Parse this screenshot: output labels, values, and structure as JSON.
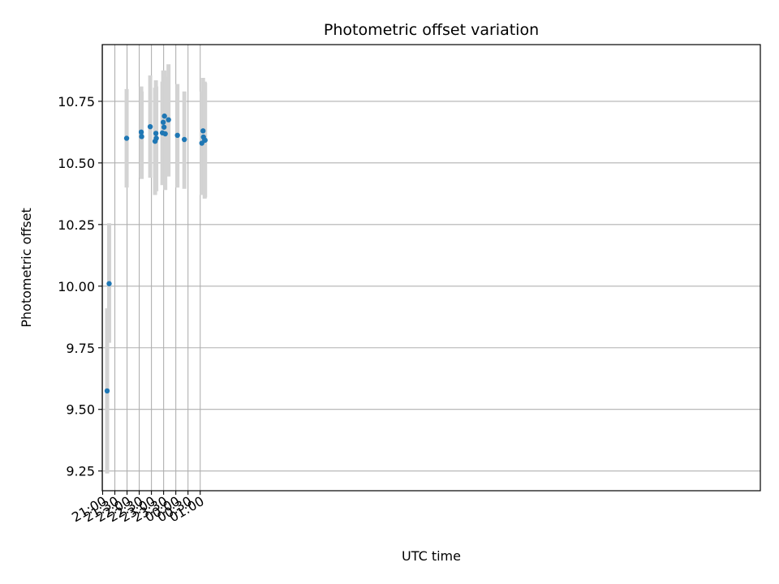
{
  "chart_data": {
    "type": "scatter",
    "title": "Photometric offset variation",
    "xlabel": "UTC time",
    "ylabel": "Photometric offset",
    "x_range": [
      "20:59",
      "23:58 +1 day"
    ],
    "ylim": [
      9.17,
      10.98
    ],
    "grid": true,
    "x_ticks": [
      "21:00",
      "21:30",
      "22:00",
      "22:30",
      "23:00",
      "23:30",
      "00:00",
      "00:30",
      "01:00"
    ],
    "y_ticks": [
      9.25,
      9.5,
      9.75,
      10.0,
      10.25,
      10.5,
      10.75
    ],
    "y_tick_labels": [
      "9.25",
      "9.50",
      "9.75",
      "10.00",
      "10.25",
      "10.50",
      "10.75"
    ],
    "colors": {
      "point": "#1f77b4",
      "error_bar": "#d3d3d3",
      "grid": "#b0b0b0",
      "axes": "#000000"
    },
    "points": [
      {
        "time": "21:11",
        "y": 9.575,
        "y_lo": 9.24,
        "y_hi": 9.91
      },
      {
        "time": "21:16",
        "y": 10.01,
        "y_lo": 9.77,
        "y_hi": 10.255
      },
      {
        "time": "21:59",
        "y": 10.6,
        "y_lo": 10.4,
        "y_hi": 10.8
      },
      {
        "time": "22:35",
        "y": 10.625,
        "y_lo": 10.44,
        "y_hi": 10.81
      },
      {
        "time": "22:36",
        "y": 10.607,
        "y_lo": 10.435,
        "y_hi": 10.79
      },
      {
        "time": "22:57",
        "y": 10.647,
        "y_lo": 10.44,
        "y_hi": 10.855
      },
      {
        "time": "23:09",
        "y": 10.588,
        "y_lo": 10.37,
        "y_hi": 10.805
      },
      {
        "time": "23:11",
        "y": 10.62,
        "y_lo": 10.405,
        "y_hi": 10.835
      },
      {
        "time": "23:12",
        "y": 10.6,
        "y_lo": 10.385,
        "y_hi": 10.81
      },
      {
        "time": "23:27",
        "y": 10.622,
        "y_lo": 10.41,
        "y_hi": 10.83
      },
      {
        "time": "23:29",
        "y": 10.665,
        "y_lo": 10.455,
        "y_hi": 10.875
      },
      {
        "time": "23:31",
        "y": 10.645,
        "y_lo": 10.435,
        "y_hi": 10.855
      },
      {
        "time": "23:32",
        "y": 10.69,
        "y_lo": 10.5,
        "y_hi": 10.875
      },
      {
        "time": "23:34",
        "y": 10.618,
        "y_lo": 10.39,
        "y_hi": 10.85
      },
      {
        "time": "23:42",
        "y": 10.675,
        "y_lo": 10.445,
        "y_hi": 10.9
      },
      {
        "time": "00:04",
        "y": 10.612,
        "y_lo": 10.4,
        "y_hi": 10.82
      },
      {
        "time": "00:21",
        "y": 10.595,
        "y_lo": 10.395,
        "y_hi": 10.79
      },
      {
        "time": "01:04",
        "y": 10.58,
        "y_lo": 10.37,
        "y_hi": 10.79
      },
      {
        "time": "01:07",
        "y": 10.63,
        "y_lo": 10.41,
        "y_hi": 10.845
      },
      {
        "time": "01:08",
        "y": 10.605,
        "y_lo": 10.405,
        "y_hi": 10.805
      },
      {
        "time": "01:11",
        "y": 10.592,
        "y_lo": 10.355,
        "y_hi": 10.83
      },
      {
        "time": "01:12",
        "y": 10.592,
        "y_lo": 10.36,
        "y_hi": 10.825
      }
    ]
  }
}
